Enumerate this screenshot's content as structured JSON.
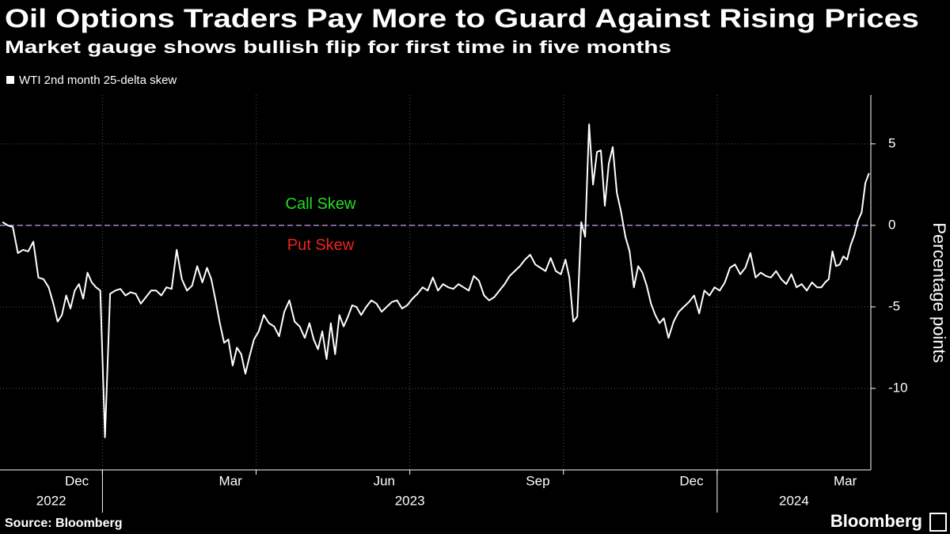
{
  "chart_data": {
    "type": "line",
    "title": "Oil Options Traders Pay More to Guard Against Rising Prices",
    "subtitle": "Market gauge shows bullish flip for first time in five months",
    "source": "Source: Bloomberg",
    "brand": "Bloomberg",
    "y_label": "Percentage points",
    "annotations": [
      {
        "text": "Call Skew",
        "color": "#22dd22"
      },
      {
        "text": "Put Skew",
        "color": "#ee2222"
      }
    ],
    "reference_line": {
      "value": 0,
      "color": "#c79cf5"
    },
    "ylim": [
      -15,
      8
    ],
    "yticks": [
      5,
      0,
      -5,
      -10
    ],
    "grid": true,
    "xlim": [
      "2022-11",
      "2024-04"
    ],
    "xticks": [
      {
        "value": "2022-12",
        "label": "Dec"
      },
      {
        "value": "2023-03",
        "label": "Mar"
      },
      {
        "value": "2023-06",
        "label": "Jun"
      },
      {
        "value": "2023-09",
        "label": "Sep"
      },
      {
        "value": "2023-12",
        "label": "Dec"
      },
      {
        "value": "2024-03",
        "label": "Mar"
      }
    ],
    "xyears": [
      "2022",
      "2023",
      "2024"
    ],
    "x": [
      "2022-11",
      "2022-11",
      "2022-11",
      "2022-11",
      "2022-11",
      "2022-11",
      "2022-11",
      "2022-11",
      "2022-11",
      "2022-11",
      "2022-12",
      "2022-12",
      "2022-12",
      "2022-12",
      "2022-12",
      "2022-12",
      "2022-12",
      "2022-12",
      "2022-12",
      "2022-12",
      "2022-12",
      "2022-12",
      "2023-01",
      "2023-01",
      "2023-01",
      "2023-01",
      "2023-01",
      "2023-01",
      "2023-01",
      "2023-01",
      "2023-01",
      "2023-01",
      "2023-02",
      "2023-02",
      "2023-02",
      "2023-02",
      "2023-02",
      "2023-02",
      "2023-02",
      "2023-02",
      "2023-02",
      "2023-02",
      "2023-03",
      "2023-03",
      "2023-03",
      "2023-03",
      "2023-03",
      "2023-03",
      "2023-03",
      "2023-03",
      "2023-03",
      "2023-03",
      "2023-03",
      "2023-03",
      "2023-04",
      "2023-04",
      "2023-04",
      "2023-04",
      "2023-04",
      "2023-04",
      "2023-04",
      "2023-04",
      "2023-04",
      "2023-04",
      "2023-05",
      "2023-05",
      "2023-05",
      "2023-05",
      "2023-05",
      "2023-05",
      "2023-05",
      "2023-05",
      "2023-05",
      "2023-05",
      "2023-05",
      "2023-05",
      "2023-06",
      "2023-06",
      "2023-06",
      "2023-06",
      "2023-06",
      "2023-06",
      "2023-06",
      "2023-06",
      "2023-06",
      "2023-06",
      "2023-07",
      "2023-07",
      "2023-07",
      "2023-07",
      "2023-07",
      "2023-07",
      "2023-07",
      "2023-07",
      "2023-07",
      "2023-07",
      "2023-08",
      "2023-08",
      "2023-08",
      "2023-08",
      "2023-08",
      "2023-08",
      "2023-08",
      "2023-08",
      "2023-08",
      "2023-08",
      "2023-09",
      "2023-09",
      "2023-09",
      "2023-09",
      "2023-09",
      "2023-09",
      "2023-09",
      "2023-09",
      "2023-09",
      "2023-09",
      "2023-10",
      "2023-10",
      "2023-10",
      "2023-10",
      "2023-10",
      "2023-10",
      "2023-10",
      "2023-10",
      "2023-10",
      "2023-10",
      "2023-10",
      "2023-10",
      "2023-10",
      "2023-11",
      "2023-11",
      "2023-11",
      "2023-11",
      "2023-11",
      "2023-11",
      "2023-11",
      "2023-11",
      "2023-11",
      "2023-11",
      "2023-11",
      "2023-11",
      "2023-12",
      "2023-12",
      "2023-12",
      "2023-12",
      "2023-12",
      "2023-12",
      "2023-12",
      "2023-12",
      "2023-12",
      "2023-12",
      "2024-01",
      "2024-01",
      "2024-01",
      "2024-01",
      "2024-01",
      "2024-01",
      "2024-01",
      "2024-01",
      "2024-01",
      "2024-01",
      "2024-02",
      "2024-02",
      "2024-02",
      "2024-02",
      "2024-02",
      "2024-02",
      "2024-02",
      "2024-02",
      "2024-02",
      "2024-02",
      "2024-03",
      "2024-03",
      "2024-03",
      "2024-03",
      "2024-03",
      "2024-03",
      "2024-03",
      "2024-03",
      "2024-03",
      "2024-03",
      "2024-03",
      "2024-03",
      "2024-03",
      "2024-03"
    ],
    "series": [
      {
        "name": "WTI 2nd month 25-delta skew",
        "color": "#ffffff",
        "values": [
          0.2,
          0,
          -0.1,
          -1.7,
          -1.5,
          -1.6,
          -1.0,
          -3.2,
          -3.3,
          -3.8,
          -4.8,
          -5.9,
          -5.5,
          -4.3,
          -5.1,
          -4.0,
          -3.6,
          -4.5,
          -2.9,
          -3.5,
          -3.8,
          -4.0,
          -13,
          -4.2,
          -4.0,
          -3.9,
          -4.3,
          -4.1,
          -4.2,
          -4.8,
          -4.4,
          -4.0,
          -4.0,
          -4.3,
          -3.8,
          -3.9,
          -1.5,
          -3.3,
          -4.0,
          -3.7,
          -2.5,
          -3.5,
          -2.6,
          -3.3,
          -4.6,
          -6.0,
          -7.2,
          -7.0,
          -8.6,
          -7.5,
          -7.9,
          -9.1,
          -8.0,
          -7.0,
          -6.5,
          -5.5,
          -6.0,
          -6.2,
          -6.8,
          -5.3,
          -4.6,
          -5.9,
          -6.2,
          -6.9,
          -6.0,
          -7.0,
          -7.6,
          -6.5,
          -8.2,
          -6.0,
          -7.9,
          -5.5,
          -6.2,
          -5.6,
          -4.9,
          -5.0,
          -5.5,
          -5.0,
          -4.6,
          -4.8,
          -5.3,
          -5.0,
          -4.7,
          -4.6,
          -5.1,
          -4.9,
          -4.5,
          -4.2,
          -3.8,
          -4.0,
          -3.2,
          -4.0,
          -3.6,
          -3.8,
          -3.9,
          -3.6,
          -3.8,
          -4.0,
          -3.1,
          -3.4,
          -4.3,
          -4.6,
          -4.4,
          -4.0,
          -3.6,
          -3.1,
          -2.8,
          -2.5,
          -2.1,
          -1.8,
          -2.4,
          -2.6,
          -2.8,
          -2.0,
          -2.8,
          -3.0,
          -2.1,
          -3.2,
          -5.9,
          -5.6,
          0.2,
          -0.7,
          6.2,
          2.5,
          4.5,
          4.6,
          1.2,
          3.8,
          4.8,
          2.0,
          0.8,
          -0.7,
          -1.6,
          -3.8,
          -2.5,
          -2.9,
          -3.7,
          -4.8,
          -5.5,
          -6.0,
          -5.7,
          -6.9,
          -5.9,
          -5.3,
          -5.0,
          -4.7,
          -4.3,
          -5.4,
          -4.0,
          -4.3,
          -3.8,
          -4.0,
          -3.5,
          -2.6,
          -2.4,
          -3.0,
          -2.6,
          -1.7,
          -3.2,
          -2.9,
          -3.1,
          -3.2,
          -2.8,
          -3.3,
          -3.6,
          -3.0,
          -3.8,
          -3.6,
          -4.0,
          -3.5,
          -3.8,
          -3.8,
          -3.5,
          -3.3,
          -1.6,
          -2.5,
          -2.4,
          -1.9,
          -2.1,
          -1.2,
          -0.6,
          0.3,
          0.8,
          2.6,
          3.2
        ]
      }
    ]
  }
}
